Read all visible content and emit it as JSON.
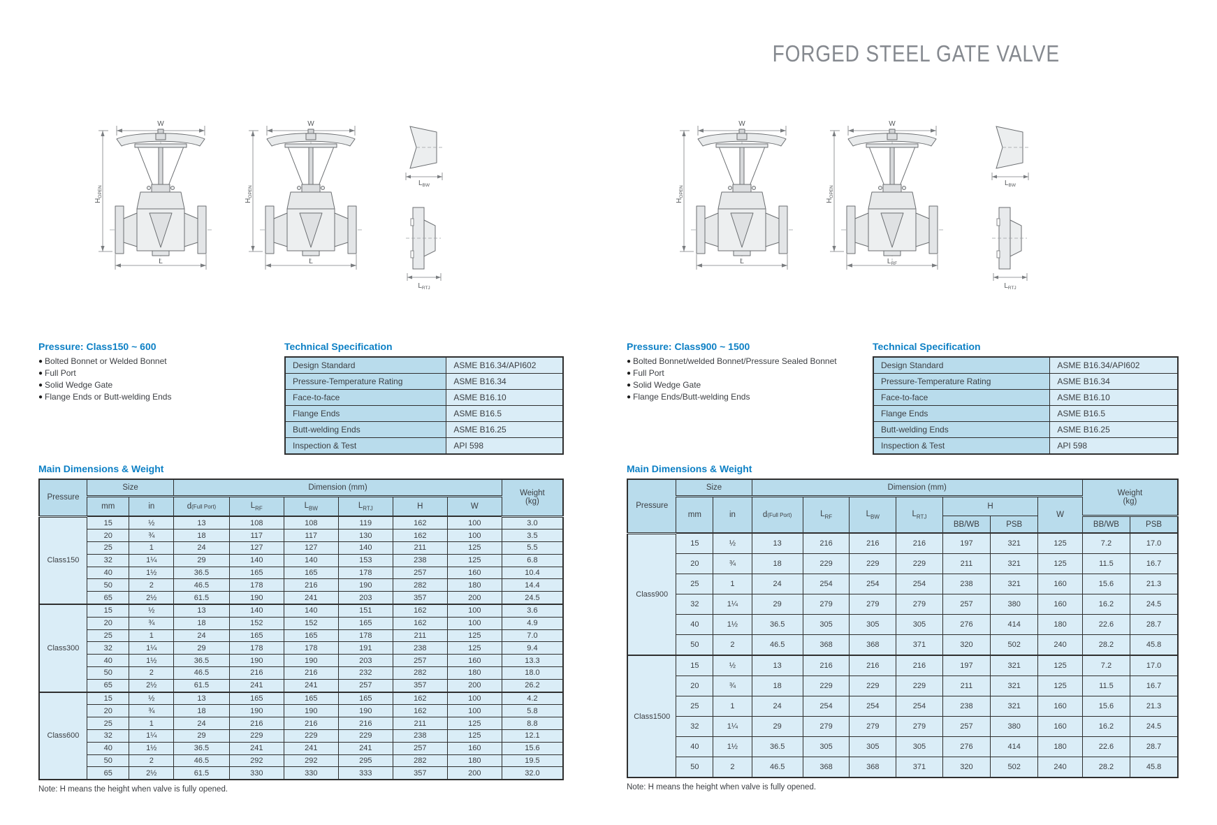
{
  "title": "FORGED STEEL GATE VALVE",
  "icons": {
    "bullet": "●"
  },
  "colors": {
    "accent_blue": "#0d80c5",
    "table_header_bg": "#b9dcec",
    "table_body_bg": "#daedf7",
    "table_border": "#2f2f2f",
    "title_gray": "#85898f"
  },
  "spec": {
    "title": "Technical Specification",
    "rows": [
      {
        "label": "Design Standard",
        "value": "ASME B16.34/API602"
      },
      {
        "label": "Pressure-Temperature Rating",
        "value": "ASME B16.34"
      },
      {
        "label": "Face-to-face",
        "value": "ASME B16.10"
      },
      {
        "label": "Flange Ends",
        "value": "ASME B16.5"
      },
      {
        "label": "Butt-welding Ends",
        "value": "ASME B16.25"
      },
      {
        "label": "Inspection & Test",
        "value": "API 598"
      }
    ]
  },
  "dims_title": "Main Dimensions & Weight",
  "dims_header": {
    "pressure": "Pressure",
    "size": "Size",
    "mm": "mm",
    "in": "in",
    "dimension": "Dimension (mm)",
    "weight": "Weight",
    "weight_unit": "(kg)",
    "d_main": "d",
    "d_sub": "(Full Port)",
    "l": "L",
    "rf": "RF",
    "bw": "BW",
    "rtj": "RTJ",
    "h": "H",
    "w": "W",
    "bbwb": "BB/WB",
    "psb": "PSB"
  },
  "note": "Note: H means the height when valve is fully opened.",
  "drawing": {
    "w": "W",
    "h": "H",
    "h_sub": "OPEN",
    "l": "L",
    "bw_sub": "BW",
    "rtj_sub": "RTJ",
    "rf_sub": "RF"
  },
  "left": {
    "pressure_heading": "Pressure: Class150 ~ 600",
    "features": [
      "Bolted Bonnet or Welded Bonnet",
      "Full Port",
      "Solid Wedge Gate",
      "Flange Ends or Butt-welding Ends"
    ],
    "groups": [
      {
        "name": "Class150",
        "rows": [
          [
            "15",
            "½",
            "13",
            "108",
            "108",
            "119",
            "162",
            "100",
            "3.0"
          ],
          [
            "20",
            "¾",
            "18",
            "117",
            "117",
            "130",
            "162",
            "100",
            "3.5"
          ],
          [
            "25",
            "1",
            "24",
            "127",
            "127",
            "140",
            "211",
            "125",
            "5.5"
          ],
          [
            "32",
            "1¼",
            "29",
            "140",
            "140",
            "153",
            "238",
            "125",
            "6.8"
          ],
          [
            "40",
            "1½",
            "36.5",
            "165",
            "165",
            "178",
            "257",
            "160",
            "10.4"
          ],
          [
            "50",
            "2",
            "46.5",
            "178",
            "216",
            "190",
            "282",
            "180",
            "14.4"
          ],
          [
            "65",
            "2½",
            "61.5",
            "190",
            "241",
            "203",
            "357",
            "200",
            "24.5"
          ]
        ]
      },
      {
        "name": "Class300",
        "rows": [
          [
            "15",
            "½",
            "13",
            "140",
            "140",
            "151",
            "162",
            "100",
            "3.6"
          ],
          [
            "20",
            "¾",
            "18",
            "152",
            "152",
            "165",
            "162",
            "100",
            "4.9"
          ],
          [
            "25",
            "1",
            "24",
            "165",
            "165",
            "178",
            "211",
            "125",
            "7.0"
          ],
          [
            "32",
            "1¼",
            "29",
            "178",
            "178",
            "191",
            "238",
            "125",
            "9.4"
          ],
          [
            "40",
            "1½",
            "36.5",
            "190",
            "190",
            "203",
            "257",
            "160",
            "13.3"
          ],
          [
            "50",
            "2",
            "46.5",
            "216",
            "216",
            "232",
            "282",
            "180",
            "18.0"
          ],
          [
            "65",
            "2½",
            "61.5",
            "241",
            "241",
            "257",
            "357",
            "200",
            "26.2"
          ]
        ]
      },
      {
        "name": "Class600",
        "rows": [
          [
            "15",
            "½",
            "13",
            "165",
            "165",
            "165",
            "162",
            "100",
            "4.2"
          ],
          [
            "20",
            "¾",
            "18",
            "190",
            "190",
            "190",
            "162",
            "100",
            "5.8"
          ],
          [
            "25",
            "1",
            "24",
            "216",
            "216",
            "216",
            "211",
            "125",
            "8.8"
          ],
          [
            "32",
            "1¼",
            "29",
            "229",
            "229",
            "229",
            "238",
            "125",
            "12.1"
          ],
          [
            "40",
            "1½",
            "36.5",
            "241",
            "241",
            "241",
            "257",
            "160",
            "15.6"
          ],
          [
            "50",
            "2",
            "46.5",
            "292",
            "292",
            "295",
            "282",
            "180",
            "19.5"
          ],
          [
            "65",
            "2½",
            "61.5",
            "330",
            "330",
            "333",
            "357",
            "200",
            "32.0"
          ]
        ]
      }
    ]
  },
  "right": {
    "pressure_heading": "Pressure: Class900 ~ 1500",
    "features": [
      "Bolted Bonnet/welded Bonnet/Pressure Sealed Bonnet",
      "Full Port",
      "Solid Wedge Gate",
      "Flange Ends/Butt-welding Ends"
    ],
    "groups": [
      {
        "name": "Class900",
        "rows": [
          [
            "15",
            "½",
            "13",
            "216",
            "216",
            "216",
            "197",
            "321",
            "125",
            "7.2",
            "17.0"
          ],
          [
            "20",
            "¾",
            "18",
            "229",
            "229",
            "229",
            "211",
            "321",
            "125",
            "11.5",
            "16.7"
          ],
          [
            "25",
            "1",
            "24",
            "254",
            "254",
            "254",
            "238",
            "321",
            "160",
            "15.6",
            "21.3"
          ],
          [
            "32",
            "1¼",
            "29",
            "279",
            "279",
            "279",
            "257",
            "380",
            "160",
            "16.2",
            "24.5"
          ],
          [
            "40",
            "1½",
            "36.5",
            "305",
            "305",
            "305",
            "276",
            "414",
            "180",
            "22.6",
            "28.7"
          ],
          [
            "50",
            "2",
            "46.5",
            "368",
            "368",
            "371",
            "320",
            "502",
            "240",
            "28.2",
            "45.8"
          ]
        ]
      },
      {
        "name": "Class1500",
        "rows": [
          [
            "15",
            "½",
            "13",
            "216",
            "216",
            "216",
            "197",
            "321",
            "125",
            "7.2",
            "17.0"
          ],
          [
            "20",
            "¾",
            "18",
            "229",
            "229",
            "229",
            "211",
            "321",
            "125",
            "11.5",
            "16.7"
          ],
          [
            "25",
            "1",
            "24",
            "254",
            "254",
            "254",
            "238",
            "321",
            "160",
            "15.6",
            "21.3"
          ],
          [
            "32",
            "1¼",
            "29",
            "279",
            "279",
            "279",
            "257",
            "380",
            "160",
            "16.2",
            "24.5"
          ],
          [
            "40",
            "1½",
            "36.5",
            "305",
            "305",
            "305",
            "276",
            "414",
            "180",
            "22.6",
            "28.7"
          ],
          [
            "50",
            "2",
            "46.5",
            "368",
            "368",
            "371",
            "320",
            "502",
            "240",
            "28.2",
            "45.8"
          ]
        ]
      }
    ]
  }
}
